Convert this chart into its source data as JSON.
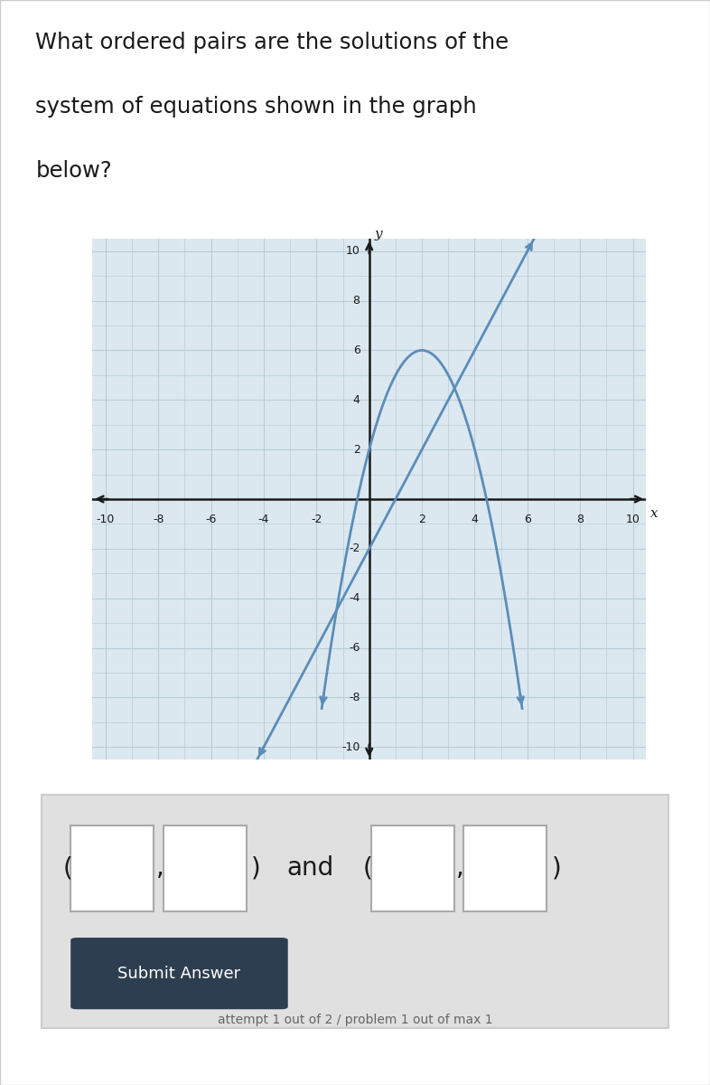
{
  "title_line1": "What ordered pairs are the solutions of the",
  "title_line2": "system of equations shown in the graph",
  "title_line3": "below?",
  "page_bg": "#f0f0f0",
  "content_bg": "#ffffff",
  "graph_bg": "#dce8f0",
  "grid_color_major": "#b8cdd8",
  "axis_color": "#1a1a1a",
  "curve_color": "#5b8db8",
  "curve_linewidth": 2.0,
  "xlim": [
    -10.5,
    10.5
  ],
  "ylim": [
    -10.5,
    10.5
  ],
  "xticks": [
    -10,
    -8,
    -6,
    -4,
    -2,
    2,
    4,
    6,
    8,
    10
  ],
  "yticks": [
    -10,
    -8,
    -6,
    -4,
    -2,
    2,
    4,
    6,
    8,
    10
  ],
  "panel_bg": "#e0e0e0",
  "panel_border": "#cccccc",
  "box_bg": "#ffffff",
  "box_border": "#aaaaaa",
  "submit_bg": "#2d3e50",
  "submit_fg": "#ffffff",
  "attempt_color": "#666666",
  "parabola_a": -1,
  "parabola_b": 4,
  "parabola_c": 2,
  "line_slope": 2,
  "line_intercept": -2
}
